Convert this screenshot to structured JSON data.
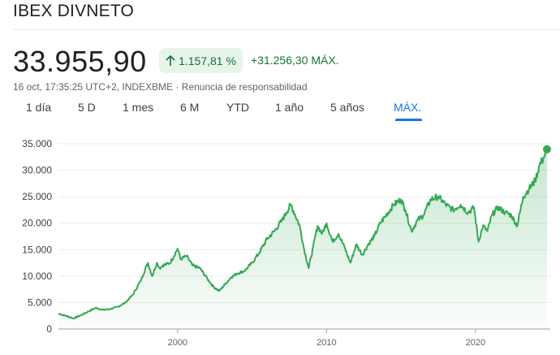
{
  "header": {
    "title": "IBEX DIVNETO"
  },
  "quote": {
    "price": "33.955,90",
    "change_pct": "1.157,81 %",
    "change_abs": "+31.256,30 MÁX.",
    "timestamp": "16 oct, 17:35:25 UTC+2",
    "exchange": "INDEXBME",
    "disclaimer": "Renuncia de responsabilidad",
    "separator": " · "
  },
  "tabs": [
    {
      "label": "1 día"
    },
    {
      "label": "5 D"
    },
    {
      "label": "1 mes"
    },
    {
      "label": "6 M"
    },
    {
      "label": "YTD"
    },
    {
      "label": "1 año"
    },
    {
      "label": "5 años"
    },
    {
      "label": "MÁX."
    }
  ],
  "colors": {
    "line": "#34a853",
    "accent": "#1a73e8",
    "positive": "#137333",
    "chip_bg": "#e6f4ea"
  },
  "chart_data": {
    "type": "area",
    "title": "IBEX DIVNETO",
    "xlabel": "",
    "ylabel": "",
    "y_tick_labels": [
      "35.000",
      "30.000",
      "25.000",
      "20.000",
      "15.000",
      "10.000",
      "5.000",
      "0"
    ],
    "y_tick_values": [
      35000,
      30000,
      25000,
      20000,
      15000,
      10000,
      5000,
      0
    ],
    "x_tick_labels": [
      "2000",
      "2010",
      "2020"
    ],
    "x_tick_values": [
      2000,
      2010,
      2020
    ],
    "ylim": [
      0,
      35000
    ],
    "xlim": [
      1992.0,
      2024.8
    ],
    "series": [
      {
        "name": "IBEX DIVNETO",
        "x": [
          1992.0,
          1992.5,
          1993.0,
          1993.5,
          1994.0,
          1994.5,
          1995.0,
          1995.5,
          1996.0,
          1996.5,
          1997.0,
          1997.5,
          1998.0,
          1998.3,
          1998.6,
          1998.8,
          1999.0,
          1999.5,
          2000.0,
          2000.2,
          2000.6,
          2001.0,
          2001.5,
          2002.0,
          2002.4,
          2002.8,
          2003.2,
          2003.6,
          2004.0,
          2004.5,
          2005.0,
          2005.5,
          2006.0,
          2006.5,
          2007.0,
          2007.3,
          2007.6,
          2007.9,
          2008.2,
          2008.5,
          2008.8,
          2009.1,
          2009.4,
          2009.7,
          2010.0,
          2010.4,
          2010.8,
          2011.2,
          2011.6,
          2012.0,
          2012.4,
          2012.8,
          2013.2,
          2013.6,
          2014.0,
          2014.5,
          2015.0,
          2015.3,
          2015.7,
          2016.1,
          2016.5,
          2017.0,
          2017.5,
          2018.0,
          2018.5,
          2019.0,
          2019.5,
          2019.9,
          2020.2,
          2020.5,
          2020.8,
          2021.1,
          2021.5,
          2022.0,
          2022.4,
          2022.8,
          2023.2,
          2023.6,
          2024.0,
          2024.3,
          2024.6,
          2024.8
        ],
        "values": [
          2900,
          2500,
          2000,
          2600,
          3300,
          4000,
          3600,
          3800,
          4200,
          5000,
          6500,
          9000,
          12500,
          10000,
          12500,
          11500,
          12000,
          12500,
          15200,
          13200,
          13800,
          12000,
          11500,
          9500,
          8000,
          7200,
          8500,
          9800,
          10500,
          11000,
          12500,
          14500,
          17000,
          18500,
          20500,
          22000,
          23500,
          21500,
          19500,
          15000,
          11500,
          15500,
          19500,
          18000,
          20000,
          16500,
          18000,
          15500,
          12500,
          16000,
          14000,
          16000,
          17500,
          20000,
          21500,
          23500,
          24500,
          22500,
          18500,
          20500,
          21500,
          24500,
          25000,
          23500,
          22500,
          23500,
          22000,
          23000,
          16500,
          19500,
          18500,
          21500,
          23000,
          22000,
          21500,
          19500,
          25000,
          26500,
          28000,
          31000,
          32500,
          33956
        ]
      }
    ]
  }
}
